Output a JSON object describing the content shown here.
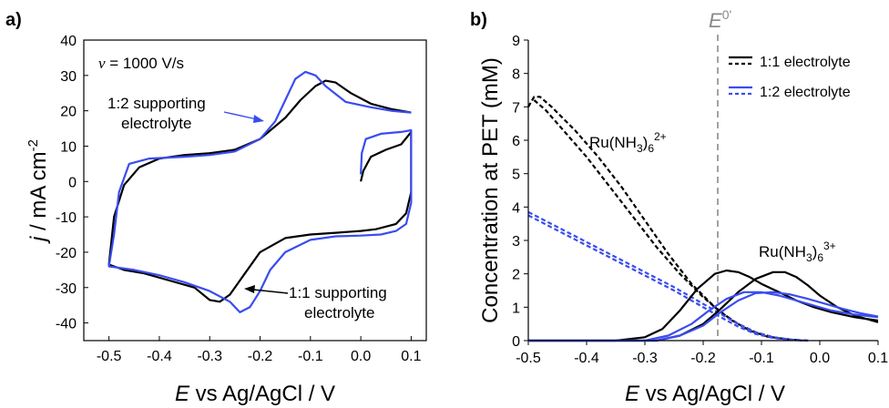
{
  "colors": {
    "black": "#000000",
    "blue": "#3a4cf0",
    "gray": "#8a8a8a"
  },
  "chart_data": [
    {
      "type": "line",
      "panel_label": "a)",
      "xlabel_italic": "E",
      "xlabel_rest": " vs Ag/AgCl / V",
      "ylabel_j": "j",
      "ylabel_unit": " / mA cm",
      "ylabel_sup": "-2",
      "xlim": [
        -0.55,
        0.13
      ],
      "ylim": [
        -45,
        40
      ],
      "xticks": [
        "-0.5",
        "-0.4",
        "-0.3",
        "-0.2",
        "-0.1",
        "0.0",
        "0.1"
      ],
      "yticks": [
        "40",
        "30",
        "20",
        "10",
        "0",
        "-10",
        "-20",
        "-30",
        "-40"
      ],
      "rate_italic": "v",
      "rate_text": " = 1000 V/s",
      "annotations": {
        "blue_line1": "1:2 supporting",
        "blue_line2": "electrolyte",
        "black_line1": "1:1 supporting",
        "black_line2": "electrolyte"
      },
      "series": [
        {
          "color": "black",
          "x": [
            0.0,
            0.005,
            0.02,
            0.05,
            0.08,
            0.1,
            0.1,
            0.09,
            0.07,
            0.03,
            0.0,
            -0.05,
            -0.1,
            -0.15,
            -0.2,
            -0.23,
            -0.26,
            -0.28,
            -0.3,
            -0.33,
            -0.38,
            -0.43,
            -0.47,
            -0.5,
            -0.49,
            -0.47,
            -0.44,
            -0.4,
            -0.35,
            -0.3,
            -0.25,
            -0.2,
            -0.15,
            -0.12,
            -0.09,
            -0.07,
            -0.05,
            -0.02,
            0.02,
            0.06,
            0.1
          ],
          "y": [
            0,
            3,
            7,
            9,
            10.5,
            14,
            -3,
            -9,
            -12,
            -13.5,
            -14,
            -14.5,
            -15,
            -16,
            -20,
            -26,
            -32,
            -34,
            -33.5,
            -30,
            -28,
            -26,
            -25,
            -23.5,
            -10,
            -1,
            4,
            6.5,
            7.5,
            8,
            9,
            12,
            18,
            23,
            27,
            28.5,
            28,
            25,
            22,
            20.5,
            19.5
          ]
        },
        {
          "color": "blue",
          "x": [
            0.0,
            0.002,
            0.01,
            0.04,
            0.08,
            0.1,
            0.1,
            0.09,
            0.07,
            0.04,
            0.0,
            -0.05,
            -0.1,
            -0.15,
            -0.18,
            -0.2,
            -0.22,
            -0.24,
            -0.26,
            -0.3,
            -0.35,
            -0.4,
            -0.45,
            -0.5,
            -0.49,
            -0.48,
            -0.46,
            -0.42,
            -0.35,
            -0.3,
            -0.25,
            -0.2,
            -0.17,
            -0.15,
            -0.13,
            -0.11,
            -0.09,
            -0.07,
            -0.03,
            0.02,
            0.06,
            0.1
          ],
          "y": [
            2,
            8,
            12,
            13.5,
            14,
            14.5,
            -6,
            -12,
            -14,
            -15,
            -15.3,
            -15.5,
            -16.5,
            -20,
            -25,
            -31,
            -35.5,
            -37,
            -34,
            -31,
            -28.5,
            -26.5,
            -25,
            -24,
            -15,
            -3,
            5,
            6.5,
            7,
            7.5,
            8.5,
            12,
            17,
            23,
            29,
            31,
            30,
            27,
            22.5,
            21,
            20,
            19.5
          ]
        }
      ]
    },
    {
      "type": "line",
      "panel_label": "b)",
      "xlabel_italic": "E",
      "xlabel_rest": " vs Ag/AgCl / V",
      "ylabel": "Concentration at PET (mM)",
      "xlim": [
        -0.5,
        0.1
      ],
      "ylim": [
        0,
        9
      ],
      "xticks": [
        "-0.5",
        "-0.4",
        "-0.3",
        "-0.2",
        "-0.1",
        "0.0",
        "0.1"
      ],
      "yticks": [
        "9",
        "8",
        "7",
        "6",
        "5",
        "4",
        "3",
        "2",
        "1",
        "0"
      ],
      "e0_italic": "E",
      "e0_sup": "0'",
      "e0_value": -0.175,
      "legend": [
        "1:1 electrolyte",
        "1:2 electrolyte"
      ],
      "labels": {
        "ru2_base": "Ru(NH",
        "ru2_sub": "3",
        "ru2_close": ")",
        "ru2_sub2": "6",
        "ru2_sup": "2+",
        "ru3_base": "Ru(NH",
        "ru3_sub": "3",
        "ru3_close": ")",
        "ru3_sub2": "6",
        "ru3_sup": "3+"
      },
      "series": [
        {
          "color": "black",
          "dash": true,
          "x": [
            -0.5,
            -0.49,
            -0.48,
            -0.46,
            -0.42,
            -0.38,
            -0.34,
            -0.3,
            -0.26,
            -0.22,
            -0.18,
            -0.15,
            -0.12,
            -0.09,
            -0.06,
            -0.03
          ],
          "y": [
            7.0,
            7.3,
            7.3,
            7.0,
            6.3,
            5.5,
            4.6,
            3.6,
            2.6,
            1.7,
            1.0,
            0.6,
            0.3,
            0.12,
            0.05,
            0.0
          ]
        },
        {
          "color": "black",
          "dash": true,
          "x": [
            -0.49,
            -0.47,
            -0.44,
            -0.4,
            -0.36,
            -0.32,
            -0.28,
            -0.24,
            -0.2,
            -0.17,
            -0.14,
            -0.11,
            -0.08,
            -0.05,
            -0.02
          ],
          "y": [
            7.2,
            6.9,
            6.3,
            5.5,
            4.6,
            3.7,
            2.8,
            2.0,
            1.3,
            0.85,
            0.5,
            0.25,
            0.1,
            0.03,
            0.0
          ]
        },
        {
          "color": "blue",
          "dash": true,
          "x": [
            -0.5,
            -0.45,
            -0.4,
            -0.35,
            -0.3,
            -0.25,
            -0.2,
            -0.17,
            -0.14,
            -0.11,
            -0.08,
            -0.05,
            -0.02
          ],
          "y": [
            3.85,
            3.4,
            2.95,
            2.5,
            2.05,
            1.6,
            1.1,
            0.8,
            0.5,
            0.25,
            0.1,
            0.03,
            0.0
          ]
        },
        {
          "color": "blue",
          "dash": true,
          "x": [
            -0.5,
            -0.45,
            -0.4,
            -0.35,
            -0.3,
            -0.25,
            -0.2,
            -0.17,
            -0.14,
            -0.11,
            -0.08,
            -0.05,
            -0.02
          ],
          "y": [
            3.75,
            3.3,
            2.85,
            2.4,
            1.95,
            1.5,
            1.0,
            0.7,
            0.42,
            0.2,
            0.08,
            0.02,
            0.0
          ]
        },
        {
          "color": "black",
          "dash": false,
          "x": [
            -0.5,
            -0.35,
            -0.3,
            -0.27,
            -0.24,
            -0.21,
            -0.18,
            -0.16,
            -0.14,
            -0.12,
            -0.1,
            -0.07,
            -0.04,
            -0.01,
            0.02,
            0.06,
            0.1
          ],
          "y": [
            0.0,
            0.0,
            0.1,
            0.35,
            0.9,
            1.55,
            2.0,
            2.1,
            2.05,
            1.9,
            1.7,
            1.45,
            1.2,
            1.0,
            0.85,
            0.7,
            0.6
          ]
        },
        {
          "color": "black",
          "dash": false,
          "x": [
            -0.5,
            -0.28,
            -0.24,
            -0.2,
            -0.17,
            -0.14,
            -0.11,
            -0.08,
            -0.06,
            -0.04,
            -0.02,
            0.0,
            0.03,
            0.06,
            0.1
          ],
          "y": [
            0.0,
            0.0,
            0.15,
            0.5,
            0.95,
            1.45,
            1.85,
            2.05,
            2.05,
            1.9,
            1.65,
            1.35,
            1.0,
            0.75,
            0.55
          ]
        },
        {
          "color": "blue",
          "dash": false,
          "x": [
            -0.5,
            -0.3,
            -0.26,
            -0.22,
            -0.19,
            -0.16,
            -0.13,
            -0.1,
            -0.07,
            -0.04,
            -0.01,
            0.02,
            0.06,
            0.1
          ],
          "y": [
            0.0,
            0.0,
            0.15,
            0.5,
            0.9,
            1.25,
            1.45,
            1.45,
            1.35,
            1.2,
            1.05,
            0.9,
            0.78,
            0.7
          ]
        },
        {
          "color": "blue",
          "dash": false,
          "x": [
            -0.5,
            -0.28,
            -0.24,
            -0.2,
            -0.17,
            -0.14,
            -0.11,
            -0.08,
            -0.05,
            -0.02,
            0.01,
            0.04,
            0.07,
            0.1
          ],
          "y": [
            0.0,
            0.0,
            0.15,
            0.45,
            0.85,
            1.2,
            1.42,
            1.45,
            1.38,
            1.25,
            1.1,
            0.95,
            0.82,
            0.72
          ]
        }
      ]
    }
  ]
}
